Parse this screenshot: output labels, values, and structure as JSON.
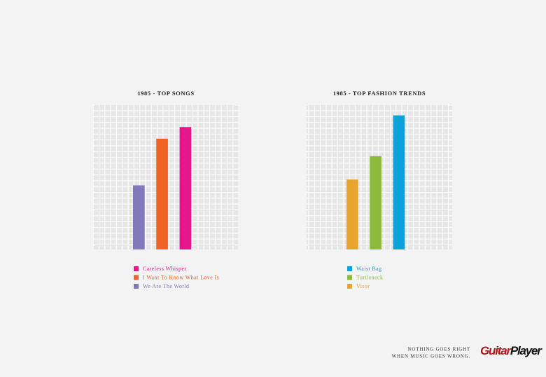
{
  "chart_data": [
    {
      "type": "bar",
      "title": "1985 - TOP SONGS",
      "categories": [
        "We Are The World",
        "I Want To Know What Love Is",
        "Careless Whisper"
      ],
      "values": [
        11,
        19,
        21
      ],
      "colors": [
        "#8279bc",
        "#f26224",
        "#e5178c"
      ],
      "ylim": [
        0,
        25
      ],
      "grid": true
    },
    {
      "type": "bar",
      "title": "1985 - TOP FASHION TRENDS",
      "categories": [
        "Visor",
        "Turtleneck",
        "Waist Bag"
      ],
      "values": [
        12,
        16,
        23
      ],
      "colors": [
        "#e9a42b",
        "#8cbb3b",
        "#0ba1d9"
      ],
      "ylim": [
        0,
        25
      ],
      "grid": true
    }
  ],
  "tagline": [
    "NOTHING GOES RIGHT",
    "WHEN MUSIC GOES WRONG."
  ],
  "logo": {
    "first": "Guitar",
    "second": "Player"
  }
}
